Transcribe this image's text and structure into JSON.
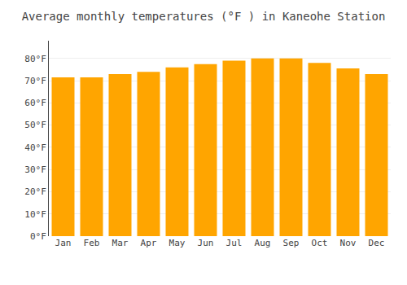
{
  "chart_data": {
    "type": "bar",
    "title": "Average monthly temperatures (°F ) in Kaneohe Station",
    "categories": [
      "Jan",
      "Feb",
      "Mar",
      "Apr",
      "May",
      "Jun",
      "Jul",
      "Aug",
      "Sep",
      "Oct",
      "Nov",
      "Dec"
    ],
    "values": [
      71.5,
      71.5,
      73.0,
      74.0,
      76.0,
      77.5,
      79.0,
      80.0,
      80.0,
      78.0,
      75.5,
      73.0
    ],
    "color": "#FFA500",
    "ylim": [
      0,
      88
    ],
    "yticks": [
      {
        "value": 0,
        "label": "0°F"
      },
      {
        "value": 10,
        "label": "10°F"
      },
      {
        "value": 20,
        "label": "20°F"
      },
      {
        "value": 30,
        "label": "30°F"
      },
      {
        "value": 40,
        "label": "40°F"
      },
      {
        "value": 50,
        "label": "50°F"
      },
      {
        "value": 60,
        "label": "60°F"
      },
      {
        "value": 70,
        "label": "70°F"
      },
      {
        "value": 80,
        "label": "80°F"
      }
    ],
    "grid": true
  }
}
